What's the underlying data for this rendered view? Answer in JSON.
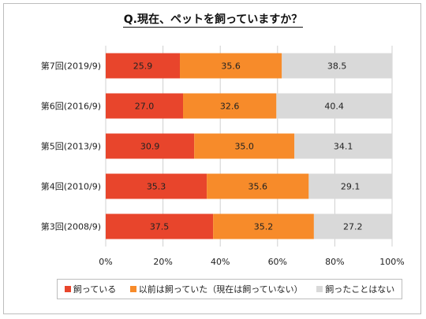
{
  "chart_data": {
    "type": "bar",
    "orientation": "horizontal",
    "stacked": true,
    "title": "Q.現在、ペットを飼っていますか？",
    "categories": [
      "第7回(2019/9)",
      "第6回(2016/9)",
      "第5回(2013/9)",
      "第4回(2010/9)",
      "第3回(2008/9)"
    ],
    "series": [
      {
        "name": "飼っている",
        "color": "#e8452c",
        "values": [
          25.9,
          27.0,
          30.9,
          35.3,
          37.5
        ]
      },
      {
        "name": "以前は飼っていた（現在は飼っていない）",
        "color": "#f78b2a",
        "values": [
          35.6,
          32.6,
          35.0,
          35.6,
          35.2
        ]
      },
      {
        "name": "飼ったことはない",
        "color": "#d9d9d9",
        "values": [
          38.5,
          40.4,
          34.1,
          29.1,
          27.2
        ]
      }
    ],
    "xlim": [
      0,
      100
    ],
    "x_ticks": [
      "0%",
      "20%",
      "40%",
      "60%",
      "80%",
      "100%"
    ],
    "grid": true,
    "legend_position": "bottom"
  }
}
